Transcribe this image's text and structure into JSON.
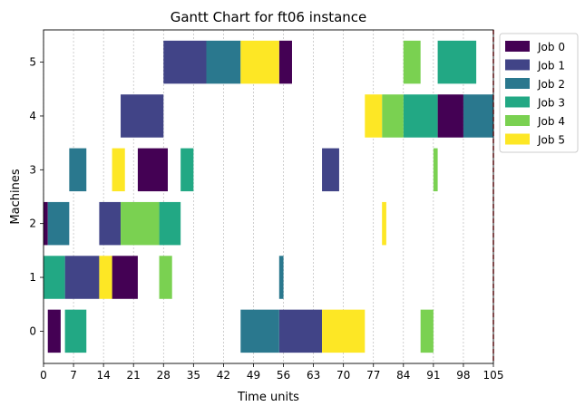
{
  "chart_data": {
    "type": "gantt",
    "title": "Gantt Chart for ft06 instance",
    "xlabel": "Time units",
    "ylabel": "Machines",
    "xlim": [
      0,
      105
    ],
    "ylim": [
      -0.6,
      5.6
    ],
    "xticks": [
      0,
      7,
      14,
      21,
      28,
      35,
      42,
      49,
      56,
      63,
      70,
      77,
      84,
      91,
      98,
      105
    ],
    "yticks": [
      0,
      1,
      2,
      3,
      4,
      5
    ],
    "vertical_grid": true,
    "makespan_line": 105,
    "legend_position": "upper-right-outside",
    "colors": {
      "Job 0": "#440154",
      "Job 1": "#414487",
      "Job 2": "#2a788e",
      "Job 3": "#22a884",
      "Job 4": "#7ad151",
      "Job 5": "#fde725",
      "makespan_line": "#d62728"
    },
    "series": [
      {
        "name": "Job 0",
        "tasks": [
          {
            "machine": 2,
            "start": 0,
            "end": 1
          },
          {
            "machine": 0,
            "start": 1,
            "end": 4
          },
          {
            "machine": 1,
            "start": 16,
            "end": 22
          },
          {
            "machine": 3,
            "start": 22,
            "end": 29
          },
          {
            "machine": 5,
            "start": 55,
            "end": 58
          },
          {
            "machine": 4,
            "start": 92,
            "end": 98
          }
        ]
      },
      {
        "name": "Job 1",
        "tasks": [
          {
            "machine": 1,
            "start": 5,
            "end": 13
          },
          {
            "machine": 2,
            "start": 13,
            "end": 18
          },
          {
            "machine": 4,
            "start": 18,
            "end": 28
          },
          {
            "machine": 5,
            "start": 28,
            "end": 38
          },
          {
            "machine": 0,
            "start": 55,
            "end": 65
          },
          {
            "machine": 3,
            "start": 65,
            "end": 69
          }
        ]
      },
      {
        "name": "Job 2",
        "tasks": [
          {
            "machine": 2,
            "start": 1,
            "end": 6
          },
          {
            "machine": 3,
            "start": 6,
            "end": 10
          },
          {
            "machine": 5,
            "start": 38,
            "end": 46
          },
          {
            "machine": 0,
            "start": 46,
            "end": 55
          },
          {
            "machine": 1,
            "start": 55,
            "end": 56
          },
          {
            "machine": 4,
            "start": 98,
            "end": 105
          }
        ]
      },
      {
        "name": "Job 3",
        "tasks": [
          {
            "machine": 1,
            "start": 0,
            "end": 5
          },
          {
            "machine": 0,
            "start": 5,
            "end": 10
          },
          {
            "machine": 2,
            "start": 27,
            "end": 32
          },
          {
            "machine": 3,
            "start": 32,
            "end": 35
          },
          {
            "machine": 4,
            "start": 84,
            "end": 92
          },
          {
            "machine": 5,
            "start": 92,
            "end": 101
          }
        ]
      },
      {
        "name": "Job 4",
        "tasks": [
          {
            "machine": 2,
            "start": 18,
            "end": 27
          },
          {
            "machine": 1,
            "start": 27,
            "end": 30
          },
          {
            "machine": 4,
            "start": 79,
            "end": 84
          },
          {
            "machine": 5,
            "start": 84,
            "end": 88
          },
          {
            "machine": 0,
            "start": 88,
            "end": 91
          },
          {
            "machine": 3,
            "start": 91,
            "end": 92
          }
        ]
      },
      {
        "name": "Job 5",
        "tasks": [
          {
            "machine": 1,
            "start": 13,
            "end": 16
          },
          {
            "machine": 3,
            "start": 16,
            "end": 19
          },
          {
            "machine": 5,
            "start": 46,
            "end": 55
          },
          {
            "machine": 0,
            "start": 65,
            "end": 75
          },
          {
            "machine": 4,
            "start": 75,
            "end": 79
          },
          {
            "machine": 2,
            "start": 79,
            "end": 80
          }
        ]
      }
    ]
  }
}
